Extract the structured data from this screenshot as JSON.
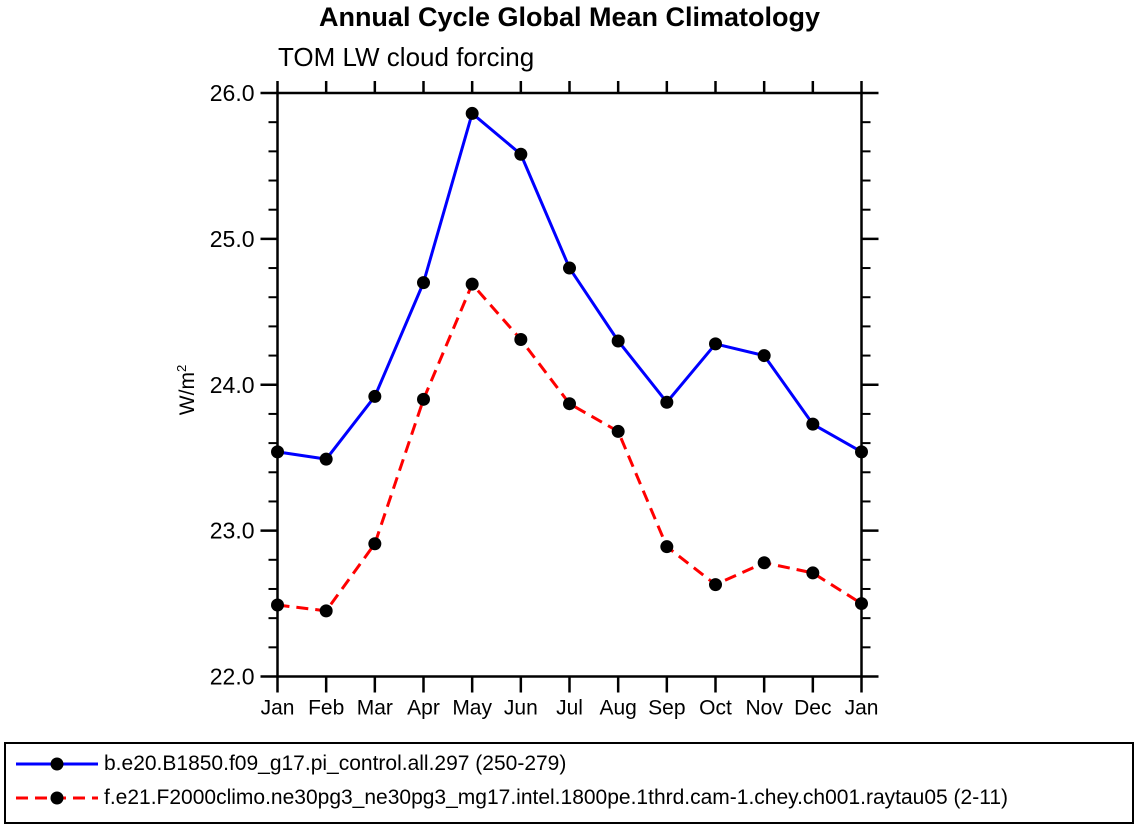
{
  "chart_data": {
    "type": "line",
    "title": "Annual Cycle Global Mean Climatology",
    "subtitle": "TOM LW cloud forcing",
    "ylabel_base": "W/m",
    "ylabel_sup": "2",
    "x": [
      "Jan",
      "Feb",
      "Mar",
      "Apr",
      "May",
      "Jun",
      "Jul",
      "Aug",
      "Sep",
      "Oct",
      "Nov",
      "Dec",
      "Jan"
    ],
    "ylim": [
      22.0,
      26.0
    ],
    "yticks": [
      22,
      23,
      24,
      25,
      26
    ],
    "yticklabels": [
      "22.0",
      "23.0",
      "24.0",
      "25.0",
      "26.0"
    ],
    "ytick_minor_step": 0.2,
    "grid": false,
    "legend_position": "bottom-full-width-box",
    "axis_color": "#000000",
    "series": [
      {
        "name": "b.e20.B1850.f09_g17.pi_control.all.297",
        "label": "b.e20.B1850.f09_g17.pi_control.all.297 (250-279)",
        "color": "#0000ff",
        "line_style": "solid",
        "marker": "circle",
        "marker_color": "#000000",
        "values": [
          23.54,
          23.49,
          23.92,
          24.7,
          25.86,
          25.58,
          24.8,
          24.3,
          23.88,
          24.28,
          24.2,
          23.73,
          23.54
        ]
      },
      {
        "name": "f.e21.F2000climo.ne30pg3_ne30pg3_mg17.intel.1800pe.1thrd.cam-1.chey.ch001.raytau05",
        "label": "f.e21.F2000climo.ne30pg3_ne30pg3_mg17.intel.1800pe.1thrd.cam-1.chey.ch001.raytau05 (2-11)",
        "color": "#ff0000",
        "line_style": "dashed",
        "marker": "circle",
        "marker_color": "#000000",
        "values": [
          22.49,
          22.45,
          22.91,
          23.9,
          24.69,
          24.31,
          23.87,
          23.68,
          22.89,
          22.63,
          22.78,
          22.71,
          22.5
        ]
      }
    ]
  }
}
